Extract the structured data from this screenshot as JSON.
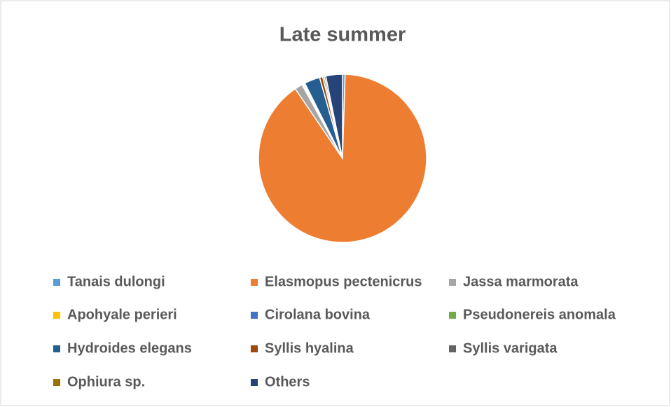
{
  "chart_data": {
    "type": "pie",
    "title": "Late summer",
    "categories": [
      "Tanais dulongi",
      "Elasmopus pectenicrus",
      "Jassa marmorata",
      "Apohyale perieri",
      "Cirolana bovina",
      "Pseudonereis anomala",
      "Hydroides elegans",
      "Syllis hyalina",
      "Syllis varigata",
      "Ophiura sp.",
      "Others"
    ],
    "values": [
      0.5,
      90,
      1.5,
      0.2,
      0.2,
      0.2,
      3,
      0.6,
      0.3,
      0.3,
      3.2
    ],
    "colors": [
      "#5B9BD5",
      "#ED7D31",
      "#A5A5A5",
      "#FFC000",
      "#4472C4",
      "#70AD47",
      "#255E91",
      "#9E480E",
      "#636363",
      "#997300",
      "#264478"
    ],
    "legend": "bottom"
  }
}
